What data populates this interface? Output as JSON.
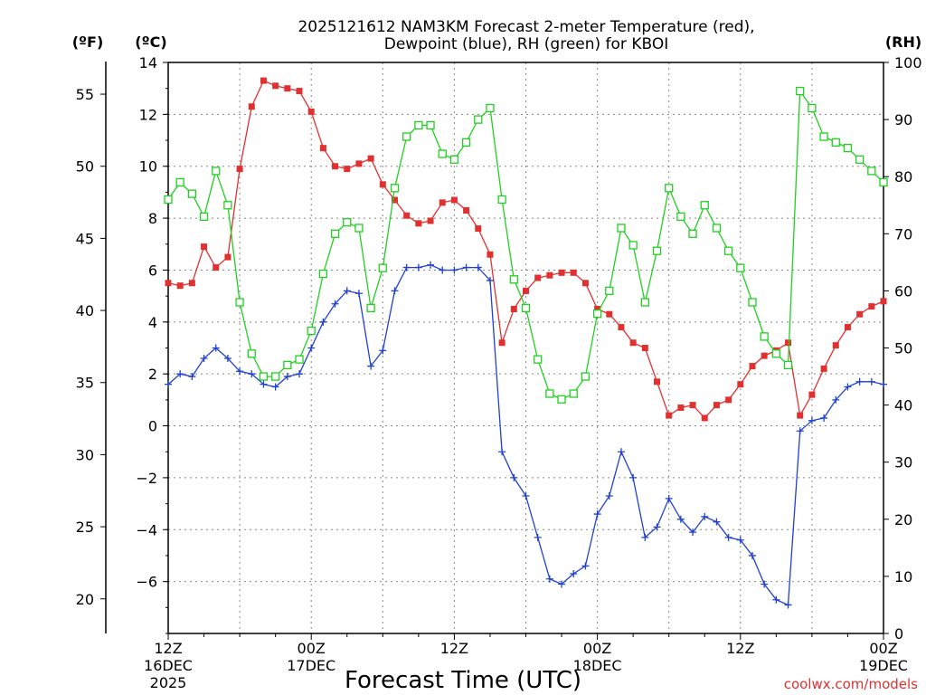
{
  "chart_data": {
    "type": "line",
    "title_line1": "2025121612 NAM3KM Forecast 2-meter Temperature (red),",
    "title_line2": "Dewpoint (blue), RH (green) for KBOI",
    "xlabel": "Forecast Time (UTC)",
    "credit": "coolwx.com/models",
    "unit_f": "(ºF)",
    "unit_c": "(ºC)",
    "unit_rh": "(RH)",
    "xlim": [
      0,
      60
    ],
    "ylim_c": [
      -8,
      14
    ],
    "ylim_rh": [
      0,
      100
    ],
    "x_ticks": [
      {
        "x": 0,
        "line1": "12Z",
        "line2": "16DEC",
        "line3": "2025"
      },
      {
        "x": 12,
        "line1": "00Z",
        "line2": "17DEC",
        "line3": ""
      },
      {
        "x": 24,
        "line1": "12Z",
        "line2": "",
        "line3": ""
      },
      {
        "x": 36,
        "line1": "00Z",
        "line2": "18DEC",
        "line3": ""
      },
      {
        "x": 48,
        "line1": "12Z",
        "line2": "",
        "line3": ""
      },
      {
        "x": 60,
        "line1": "00Z",
        "line2": "19DEC",
        "line3": ""
      }
    ],
    "c_ticks": [
      "14",
      "12",
      "10",
      "8",
      "6",
      "4",
      "2",
      "0",
      "−2",
      "−4",
      "−6"
    ],
    "f_ticks": [
      "55",
      "50",
      "45",
      "40",
      "35",
      "30",
      "25",
      "20"
    ],
    "rh_ticks": [
      "100",
      "90",
      "80",
      "70",
      "60",
      "50",
      "40",
      "30",
      "20",
      "10",
      "0"
    ],
    "series": [
      {
        "name": "2-meter Temperature",
        "color": "#e03030",
        "marker": "filled-square",
        "axis": "c",
        "values": [
          5.5,
          5.4,
          5.5,
          6.9,
          6.1,
          6.5,
          9.9,
          12.3,
          13.3,
          13.1,
          13.0,
          12.9,
          12.1,
          10.7,
          10.0,
          9.9,
          10.1,
          10.3,
          9.3,
          8.7,
          8.1,
          7.8,
          7.9,
          8.6,
          8.7,
          8.3,
          7.6,
          6.6,
          3.2,
          4.5,
          5.2,
          5.7,
          5.8,
          5.9,
          5.9,
          5.5,
          4.5,
          4.3,
          3.8,
          3.2,
          3.0,
          1.7,
          0.4,
          0.7,
          0.8,
          0.3,
          0.8,
          1.0,
          1.6,
          2.3,
          2.7,
          2.9,
          3.2,
          0.4,
          1.2,
          2.2,
          3.1,
          3.8,
          4.3,
          4.6,
          4.8
        ]
      },
      {
        "name": "Dewpoint",
        "color": "#2040d0",
        "marker": "plus",
        "axis": "c",
        "values": [
          1.6,
          2.0,
          1.9,
          2.6,
          3.0,
          2.6,
          2.1,
          2.0,
          1.6,
          1.5,
          1.9,
          2.0,
          3.0,
          4.0,
          4.7,
          5.2,
          5.1,
          2.3,
          2.9,
          5.2,
          6.1,
          6.1,
          6.2,
          6.0,
          6.0,
          6.1,
          6.1,
          5.6,
          -1.0,
          -2.0,
          -2.7,
          -4.3,
          -5.9,
          -6.1,
          -5.7,
          -5.4,
          -3.4,
          -2.7,
          -1.0,
          -2.0,
          -4.3,
          -3.9,
          -2.8,
          -3.6,
          -4.1,
          -3.5,
          -3.7,
          -4.3,
          -4.4,
          -5.0,
          -6.1,
          -6.7,
          -6.9,
          -0.2,
          0.2,
          0.3,
          1.0,
          1.5,
          1.7,
          1.7,
          1.6
        ]
      },
      {
        "name": "RH",
        "color": "#20d020",
        "marker": "open-square",
        "axis": "rh",
        "values": [
          76,
          79,
          77,
          73,
          81,
          75,
          58,
          49,
          45,
          45,
          47,
          48,
          53,
          63,
          70,
          72,
          71,
          57,
          64,
          78,
          87,
          89,
          89,
          84,
          83,
          86,
          90,
          92,
          76,
          62,
          57,
          48,
          42,
          41,
          42,
          45,
          56,
          60,
          71,
          68,
          58,
          67,
          78,
          73,
          70,
          75,
          71,
          67,
          64,
          58,
          52,
          49,
          47,
          95,
          92,
          87,
          86,
          85,
          83,
          81,
          79
        ]
      }
    ]
  }
}
